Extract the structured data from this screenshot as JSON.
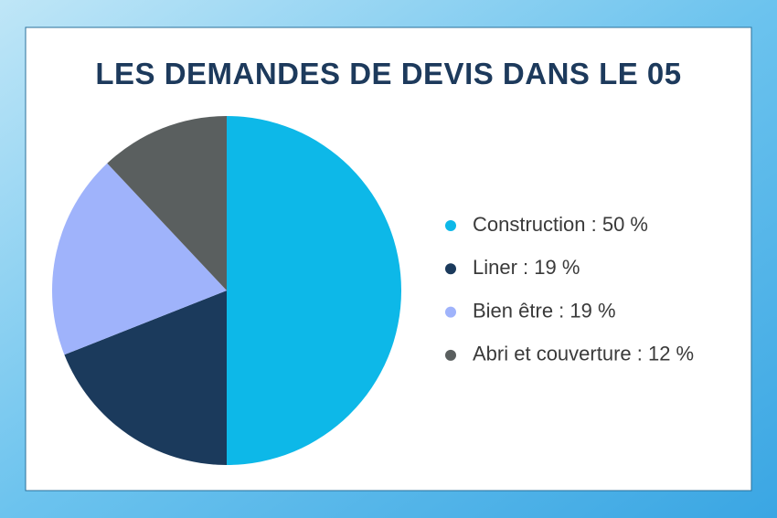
{
  "chart_data": {
    "type": "pie",
    "title": "LES DEMANDES DE DEVIS DANS LE 05",
    "labels": [
      "Construction : 50 %",
      "Liner : 19 %",
      "Bien être : 19 %",
      "Abri et couverture : 12 %"
    ],
    "values": [
      50,
      19,
      19,
      12
    ],
    "colors": [
      "#0db8e8",
      "#1b3a5c",
      "#9fb3fb",
      "#5a5f5f"
    ],
    "legend": "right"
  }
}
